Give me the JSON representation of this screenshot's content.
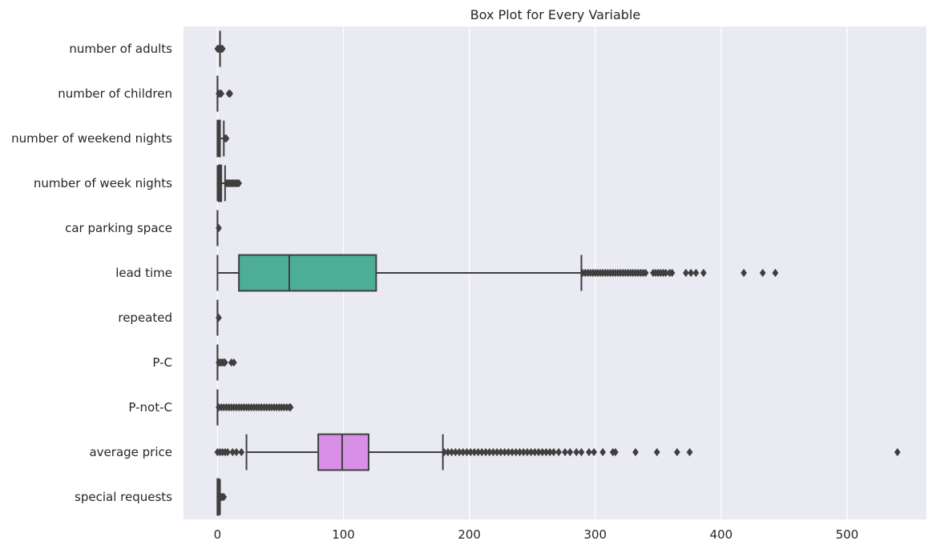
{
  "chart_data": {
    "type": "box",
    "title": "Box Plot for Every Variable",
    "orientation": "horizontal",
    "xlabel": "",
    "ylabel": "",
    "xlim": [
      -27,
      563
    ],
    "x_ticks": [
      0,
      100,
      200,
      300,
      400,
      500
    ],
    "grid": true,
    "colors": {
      "background": "#eaeaf2",
      "grid": "#ffffff",
      "line": "#3f3f3f",
      "lead_time_box": "#4cae96",
      "average_price_box": "#d890e6",
      "default_box": "#3f3f3f"
    },
    "categories": [
      "number of adults",
      "number of children",
      "number of weekend nights",
      "number of week nights",
      "car parking space",
      "lead time",
      "repeated",
      "P-C",
      "P-not-C",
      "average price",
      "special requests"
    ],
    "boxes": [
      {
        "category": "number of adults",
        "whisker_low": 2,
        "q1": 2,
        "median": 2,
        "q3": 2,
        "whisker_high": 2,
        "fill": "#3f3f3f",
        "outliers": [
          0,
          1,
          3,
          4
        ]
      },
      {
        "category": "number of children",
        "whisker_low": 0,
        "q1": 0,
        "median": 0,
        "q3": 0,
        "whisker_high": 0,
        "fill": "#3f3f3f",
        "outliers": [
          1,
          2,
          3,
          9,
          10
        ]
      },
      {
        "category": "number of weekend nights",
        "whisker_low": 0,
        "q1": 0,
        "median": 1,
        "q3": 2,
        "whisker_high": 5,
        "fill": "#3f3f3f",
        "outliers": [
          6,
          7
        ]
      },
      {
        "category": "number of week nights",
        "whisker_low": 0,
        "q1": 1,
        "median": 2,
        "q3": 3,
        "whisker_high": 6,
        "fill": "#3f3f3f",
        "outliers": [
          7,
          8,
          9,
          10,
          11,
          12,
          13,
          14,
          15,
          16,
          17
        ]
      },
      {
        "category": "car parking space",
        "whisker_low": 0,
        "q1": 0,
        "median": 0,
        "q3": 0,
        "whisker_high": 0,
        "fill": "#3f3f3f",
        "outliers": [
          1
        ]
      },
      {
        "category": "lead time",
        "whisker_low": 0,
        "q1": 17,
        "median": 57,
        "q3": 126,
        "whisker_high": 289,
        "fill": "#4cae96",
        "outliers": [
          290,
          292,
          294,
          296,
          298,
          300,
          302,
          304,
          306,
          308,
          310,
          312,
          314,
          316,
          318,
          320,
          322,
          324,
          326,
          328,
          330,
          332,
          334,
          336,
          338,
          340,
          346,
          348,
          350,
          352,
          354,
          356,
          359,
          361,
          372,
          376,
          380,
          386,
          418,
          433,
          443
        ]
      },
      {
        "category": "repeated",
        "whisker_low": 0,
        "q1": 0,
        "median": 0,
        "q3": 0,
        "whisker_high": 0,
        "fill": "#3f3f3f",
        "outliers": [
          1
        ]
      },
      {
        "category": "P-C",
        "whisker_low": 0,
        "q1": 0,
        "median": 0,
        "q3": 0,
        "whisker_high": 0,
        "fill": "#3f3f3f",
        "outliers": [
          1,
          2,
          3,
          4,
          5,
          6,
          11,
          13
        ]
      },
      {
        "category": "P-not-C",
        "whisker_low": 0,
        "q1": 0,
        "median": 0,
        "q3": 0,
        "whisker_high": 0,
        "fill": "#3f3f3f",
        "outliers": [
          1,
          3,
          5,
          7,
          9,
          11,
          13,
          15,
          17,
          19,
          21,
          23,
          25,
          27,
          29,
          31,
          33,
          35,
          37,
          39,
          41,
          43,
          45,
          47,
          49,
          51,
          53,
          55,
          57,
          58
        ]
      },
      {
        "category": "average price",
        "whisker_low": 23,
        "q1": 80,
        "median": 99,
        "q3": 120,
        "whisker_high": 179,
        "fill": "#d890e6",
        "outliers": [
          0,
          2,
          4,
          6,
          8,
          12,
          15,
          19,
          180,
          183,
          186,
          189,
          192,
          195,
          198,
          201,
          204,
          207,
          210,
          213,
          216,
          219,
          222,
          225,
          228,
          231,
          234,
          237,
          240,
          243,
          246,
          249,
          252,
          255,
          258,
          261,
          264,
          267,
          271,
          276,
          280,
          285,
          289,
          295,
          299,
          306,
          314,
          316,
          332,
          349,
          365,
          375,
          540
        ]
      },
      {
        "category": "special requests",
        "whisker_low": 0,
        "q1": 0,
        "median": 0,
        "q3": 1,
        "whisker_high": 2,
        "fill": "#3f3f3f",
        "outliers": [
          3,
          4,
          5
        ]
      }
    ]
  }
}
